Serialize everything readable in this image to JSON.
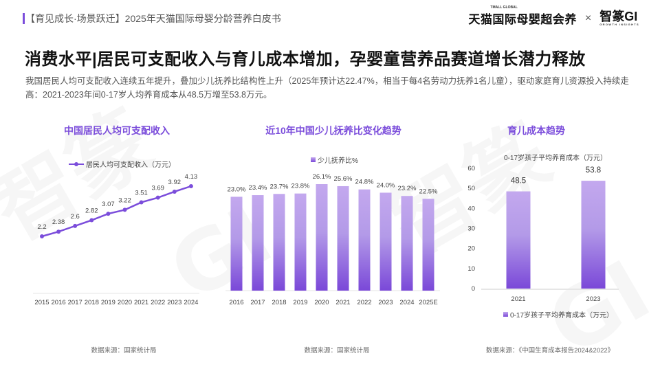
{
  "header": {
    "series_title": "【育见成长·场景跃迁】2025年天猫国际母婴分龄营养白皮书",
    "logo_left": "天猫国际母婴超会养",
    "logo_left_small": "TMALL GLOBAL",
    "logo_separator": "×",
    "logo_right": "智篆GI",
    "logo_right_sub": "GROWTH INSIGHTS"
  },
  "headline": "消费水平|居民可支配收入与育儿成本增加，孕婴童营养品赛道增长潜力释放",
  "description": "我国居民人均可支配收入连续五年提升，叠加少儿抚养比结构性上升（2025年预计达22.47%，相当于每4名劳动力抚养1名儿童），驱动家庭育儿资源投入持续走高：2021-2023年间0-17岁人均养育成本从48.5万增至53.8万元。",
  "colors": {
    "accent": "#7b4ddb",
    "bar_top": "#c3a8ee",
    "bar_bottom": "#7a48d8"
  },
  "chart_data": [
    {
      "type": "line",
      "title": "中国居民人均可支配收入",
      "legend": [
        "居民人均可支配收入（万元）"
      ],
      "categories": [
        "2015",
        "2016",
        "2017",
        "2018",
        "2019",
        "2020",
        "2021",
        "2022",
        "2023",
        "2024"
      ],
      "series": [
        {
          "name": "居民人均可支配收入（万元）",
          "values": [
            2.2,
            2.38,
            2.6,
            2.82,
            3.07,
            3.22,
            3.51,
            3.69,
            3.92,
            4.13
          ]
        }
      ],
      "value_labels": [
        "2.2",
        "2.38",
        "2.6",
        "2.82",
        "3.07",
        "3.22",
        "3.51",
        "3.69",
        "3.92",
        "4.13"
      ],
      "xlabel": "",
      "ylabel": "",
      "grid": false,
      "legend_position": "top",
      "source": "数据来源：国家统计局"
    },
    {
      "type": "bar",
      "title": "近10年中国少儿抚养比变化趋势",
      "legend": [
        "少儿抚养比%"
      ],
      "categories": [
        "2016",
        "2017",
        "2018",
        "2019",
        "2020",
        "2021",
        "2022",
        "2023",
        "2024",
        "2025E"
      ],
      "series": [
        {
          "name": "少儿抚养比%",
          "values": [
            23.0,
            23.4,
            23.7,
            23.8,
            26.1,
            25.6,
            24.8,
            24.0,
            23.2,
            22.5
          ]
        }
      ],
      "value_labels": [
        "23.0%",
        "23.4%",
        "23.7%",
        "23.8%",
        "26.1%",
        "25.6%",
        "24.8%",
        "24.0%",
        "23.2%",
        "22.5%"
      ],
      "xlabel": "",
      "ylabel": "",
      "grid": false,
      "legend_position": "top",
      "source": "数据来源：国家统计局"
    },
    {
      "type": "bar",
      "title": "育儿成本趋势",
      "subtitle": "0-17岁孩子平均养育成本（万元）",
      "legend": [
        "0-17岁孩子平均养育成本（万元）"
      ],
      "categories": [
        "2021",
        "2023"
      ],
      "series": [
        {
          "name": "0-17岁孩子平均养育成本（万元）",
          "values": [
            48.5,
            53.8
          ]
        }
      ],
      "value_labels": [
        "48.5",
        "53.8"
      ],
      "yticks": [
        "0",
        "10",
        "20",
        "30",
        "40",
        "50",
        "60"
      ],
      "ylim": [
        0,
        60
      ],
      "xlabel": "",
      "ylabel": "",
      "grid": false,
      "legend_position": "bottom",
      "source": "数据来源：《中国生育成本报告2024&2022》"
    }
  ]
}
